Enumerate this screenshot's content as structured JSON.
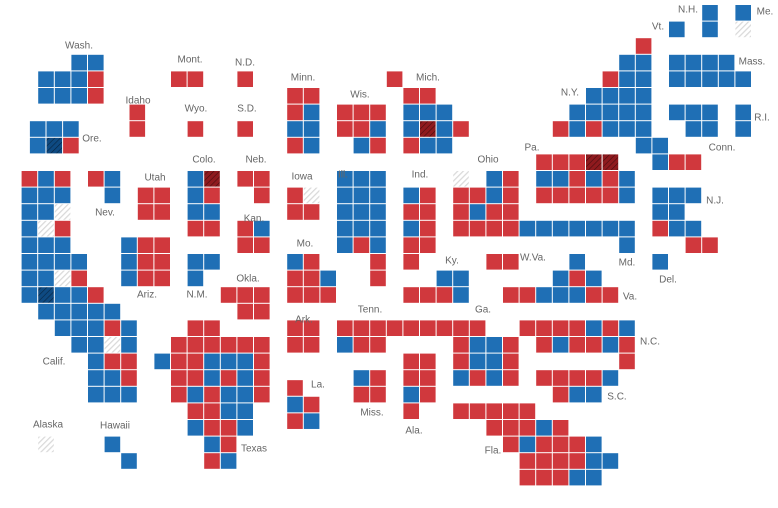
{
  "colors": {
    "D": "#1f6fb5",
    "R": "#d0383d",
    "N": "#d9d9d9",
    "X": "#8f1a1e",
    "Y": "#0e4a82"
  },
  "hatched": [
    "N",
    "X",
    "Y"
  ],
  "states": [
    {
      "label": "Wash."
    },
    {
      "label": "Ore."
    },
    {
      "label": "Calif."
    },
    {
      "label": "Nev."
    },
    {
      "label": "Idaho"
    },
    {
      "label": "Utah"
    },
    {
      "label": "Ariz."
    },
    {
      "label": "Mont."
    },
    {
      "label": "Wyo."
    },
    {
      "label": "Colo."
    },
    {
      "label": "N.M."
    },
    {
      "label": "N.D."
    },
    {
      "label": "S.D."
    },
    {
      "label": "Neb."
    },
    {
      "label": "Kan."
    },
    {
      "label": "Okla."
    },
    {
      "label": "Texas"
    },
    {
      "label": "Minn."
    },
    {
      "label": "Iowa"
    },
    {
      "label": "Mo."
    },
    {
      "label": "Ark."
    },
    {
      "label": "La."
    },
    {
      "label": "Wis."
    },
    {
      "label": "Ill."
    },
    {
      "label": "Mich."
    },
    {
      "label": "Ind."
    },
    {
      "label": "Ky."
    },
    {
      "label": "Tenn."
    },
    {
      "label": "Miss."
    },
    {
      "label": "Ala."
    },
    {
      "label": "Ohio"
    },
    {
      "label": "W.Va."
    },
    {
      "label": "Ga."
    },
    {
      "label": "Fla."
    },
    {
      "label": "Pa."
    },
    {
      "label": "Va."
    },
    {
      "label": "N.C."
    },
    {
      "label": "S.C."
    },
    {
      "label": "Md."
    },
    {
      "label": "Del."
    },
    {
      "label": "N.J."
    },
    {
      "label": "N.Y."
    },
    {
      "label": "Conn."
    },
    {
      "label": "R.I."
    },
    {
      "label": "Mass."
    },
    {
      "label": "Vt."
    },
    {
      "label": "N.H."
    },
    {
      "label": "Me."
    },
    {
      "label": "Alaska"
    },
    {
      "label": "Hawaii"
    }
  ]
}
